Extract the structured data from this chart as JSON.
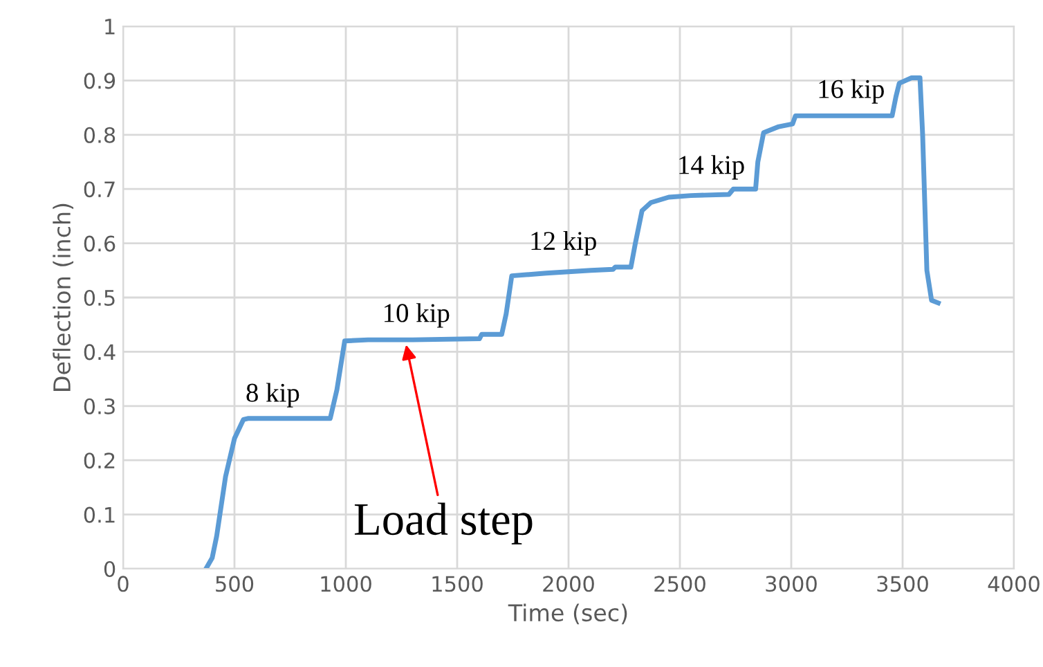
{
  "chart_data": {
    "type": "line",
    "xlabel": "Time (sec)",
    "ylabel": "Deflection (inch)",
    "x": [
      372,
      400,
      420,
      460,
      500,
      540,
      560,
      700,
      930,
      960,
      995,
      1100,
      1300,
      1600,
      1610,
      1700,
      1720,
      1745,
      1900,
      2100,
      2200,
      2210,
      2280,
      2300,
      2330,
      2370,
      2450,
      2550,
      2720,
      2740,
      2840,
      2850,
      2876,
      2944,
      3006,
      3019,
      3200,
      3453,
      3470,
      3485,
      3540,
      3578,
      3590,
      3609,
      3630,
      3660
    ],
    "series": [
      {
        "color": "#5b9bd5",
        "values": [
          0,
          0.02,
          0.06,
          0.17,
          0.24,
          0.275,
          0.277,
          0.277,
          0.277,
          0.33,
          0.42,
          0.422,
          0.422,
          0.424,
          0.432,
          0.432,
          0.47,
          0.54,
          0.545,
          0.55,
          0.552,
          0.556,
          0.556,
          0.6,
          0.66,
          0.675,
          0.685,
          0.688,
          0.69,
          0.7,
          0.7,
          0.75,
          0.804,
          0.815,
          0.82,
          0.835,
          0.835,
          0.835,
          0.87,
          0.895,
          0.905,
          0.905,
          0.8,
          0.55,
          0.495,
          0.49
        ]
      }
    ],
    "xlim": [
      0,
      4000
    ],
    "xticks": [
      0,
      500,
      1000,
      1500,
      2000,
      2500,
      3000,
      3500,
      4000
    ],
    "ylim": [
      0,
      1
    ],
    "yticks": [
      0,
      0.1,
      0.2,
      0.3,
      0.4,
      0.5,
      0.6,
      0.7,
      0.8,
      0.9,
      1
    ],
    "grid": true,
    "legend": false,
    "marker": "none",
    "line_style": "solid",
    "annotations": [
      "8 kip",
      "10 kip",
      "12 kip",
      "14 kip",
      "16 kip",
      {
        "text": "Load step",
        "x": 1267,
        "y": 0.42
      }
    ]
  }
}
